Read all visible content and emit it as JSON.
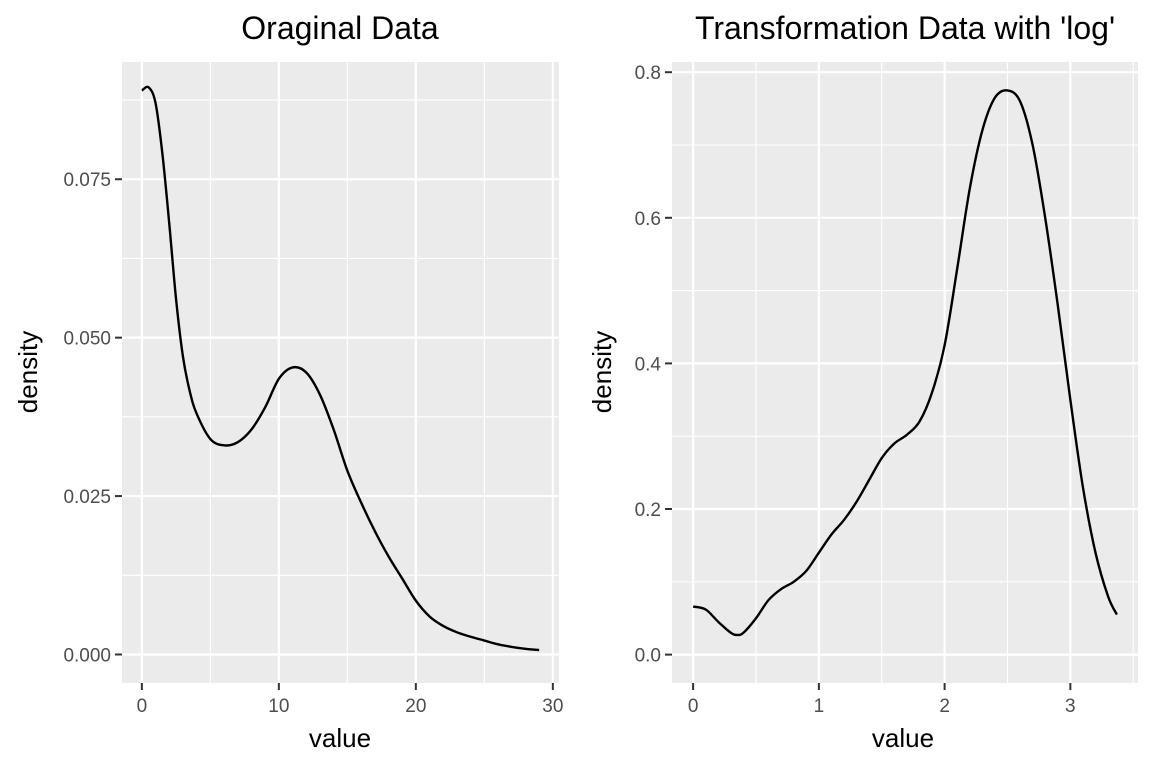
{
  "chart_data": [
    {
      "type": "line",
      "title": "Oraginal Data",
      "xlabel": "value",
      "ylabel": "density",
      "xlim": [
        -1.45,
        30.45
      ],
      "ylim": [
        -0.0045,
        0.0935
      ],
      "xticks": [
        0,
        10,
        20,
        30
      ],
      "xtick_labels": [
        "0",
        "10",
        "20",
        "30"
      ],
      "yticks": [
        0.0,
        0.025,
        0.05,
        0.075
      ],
      "ytick_labels": [
        "0.000",
        "0.025",
        "0.050",
        "0.075"
      ],
      "grid": true,
      "series": [
        {
          "x": [
            0,
            0.5,
            1,
            1.5,
            2,
            2.5,
            3,
            3.5,
            4,
            5,
            6,
            7,
            8,
            9,
            10,
            11,
            12,
            13,
            14,
            15,
            16,
            17,
            18,
            19,
            20,
            21,
            22,
            23,
            24,
            25,
            26,
            27,
            28,
            29
          ],
          "y": [
            0.089,
            0.0895,
            0.087,
            0.079,
            0.068,
            0.056,
            0.047,
            0.0415,
            0.038,
            0.034,
            0.033,
            0.0335,
            0.0355,
            0.039,
            0.0435,
            0.0453,
            0.0445,
            0.041,
            0.0355,
            0.029,
            0.024,
            0.0195,
            0.0155,
            0.012,
            0.0085,
            0.006,
            0.0045,
            0.0035,
            0.0028,
            0.0022,
            0.0016,
            0.0012,
            0.0009,
            0.0007
          ]
        }
      ]
    },
    {
      "type": "line",
      "title": "Transformation Data with 'log'",
      "xlabel": "value",
      "ylabel": "density",
      "xlim": [
        -0.168,
        3.538
      ],
      "ylim": [
        -0.039,
        0.814
      ],
      "xticks": [
        0,
        1,
        2,
        3
      ],
      "xtick_labels": [
        "0",
        "1",
        "2",
        "3"
      ],
      "yticks": [
        0.0,
        0.2,
        0.4,
        0.6,
        0.8
      ],
      "ytick_labels": [
        "0.0",
        "0.2",
        "0.4",
        "0.6",
        "0.8"
      ],
      "grid": true,
      "series": [
        {
          "x": [
            0,
            0.1,
            0.2,
            0.3,
            0.35,
            0.4,
            0.5,
            0.6,
            0.7,
            0.8,
            0.9,
            1.0,
            1.1,
            1.2,
            1.3,
            1.4,
            1.5,
            1.6,
            1.7,
            1.8,
            1.9,
            2.0,
            2.1,
            2.2,
            2.3,
            2.4,
            2.5,
            2.6,
            2.7,
            2.8,
            2.9,
            3.0,
            3.1,
            3.2,
            3.3,
            3.37
          ],
          "y": [
            0.066,
            0.062,
            0.045,
            0.03,
            0.027,
            0.03,
            0.05,
            0.075,
            0.09,
            0.1,
            0.115,
            0.14,
            0.165,
            0.185,
            0.21,
            0.24,
            0.27,
            0.29,
            0.302,
            0.32,
            0.36,
            0.425,
            0.53,
            0.64,
            0.72,
            0.765,
            0.775,
            0.76,
            0.7,
            0.6,
            0.48,
            0.35,
            0.23,
            0.14,
            0.08,
            0.055
          ]
        }
      ]
    }
  ]
}
